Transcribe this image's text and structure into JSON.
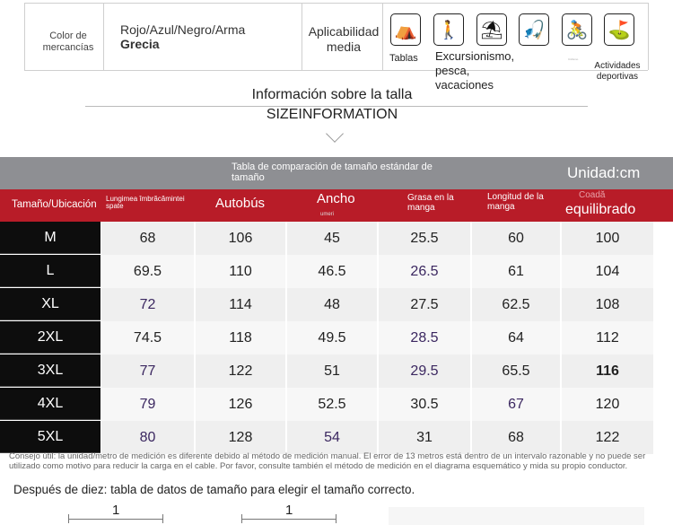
{
  "product": {
    "color_label": "Color de mercancías",
    "color_value": "Rojo/Azul/Negro/Arma",
    "color_value_bold": "Grecia",
    "applicability_label": "Aplicabilidad media",
    "activities": [
      {
        "icon": "tent-icon"
      },
      {
        "icon": "hiking-icon"
      },
      {
        "icon": "beach-icon"
      },
      {
        "icon": "fishing-icon"
      },
      {
        "icon": "cycling-icon"
      },
      {
        "icon": "golf-icon"
      }
    ],
    "activity_labels": {
      "tablas": "Tablas",
      "hiking": "Excursionismo, pesca, vacaciones",
      "tiny": "Ciclismo",
      "sports": "Actividades deportivas"
    }
  },
  "size_info": {
    "title": "Información sobre la talla",
    "subtitle": "SIZEINFORMATION"
  },
  "table": {
    "caption": "Tabla de comparación de tamaño estándar de tamaño",
    "unit": "Unidad:cm",
    "headers": [
      "Tamaño/Ubicación",
      "Lungimea îmbrăcămintei spate",
      "Autobús",
      "Ancho",
      "umeri",
      "Grasa en la manga",
      "Longitud de la manga",
      "Coadă",
      "equilibrado"
    ],
    "rows": [
      {
        "size": "M",
        "v": [
          "68",
          "106",
          "45",
          "25.5",
          "60",
          "100"
        ]
      },
      {
        "size": "L",
        "v": [
          "69.5",
          "110",
          "46.5",
          "26.5",
          "61",
          "104"
        ]
      },
      {
        "size": "XL",
        "v": [
          "72",
          "114",
          "48",
          "27.5",
          "62.5",
          "108"
        ]
      },
      {
        "size": "2XL",
        "v": [
          "74.5",
          "118",
          "49.5",
          "28.5",
          "64",
          "112"
        ]
      },
      {
        "size": "3XL",
        "v": [
          "77",
          "122",
          "51",
          "29.5",
          "65.5",
          "116"
        ]
      },
      {
        "size": "4XL",
        "v": [
          "79",
          "126",
          "52.5",
          "30.5",
          "67",
          "120"
        ]
      },
      {
        "size": "5XL",
        "v": [
          "80",
          "128",
          "54",
          "31",
          "68",
          "122"
        ]
      }
    ]
  },
  "tip": "Consejo útil: la unidad/metro de medición es diferente debido al método de medición manual. El error de 13 metros está dentro de un intervalo razonable y no puede ser utilizado como motivo para reducir la carga en el cable. Por favor, consulte también el método de medición en el diagrama esquemático y mida su propio conductor.",
  "after": "Después de diez: tabla de datos de tamaño para elegir el tamaño correcto.",
  "dims": [
    "1",
    "1"
  ]
}
